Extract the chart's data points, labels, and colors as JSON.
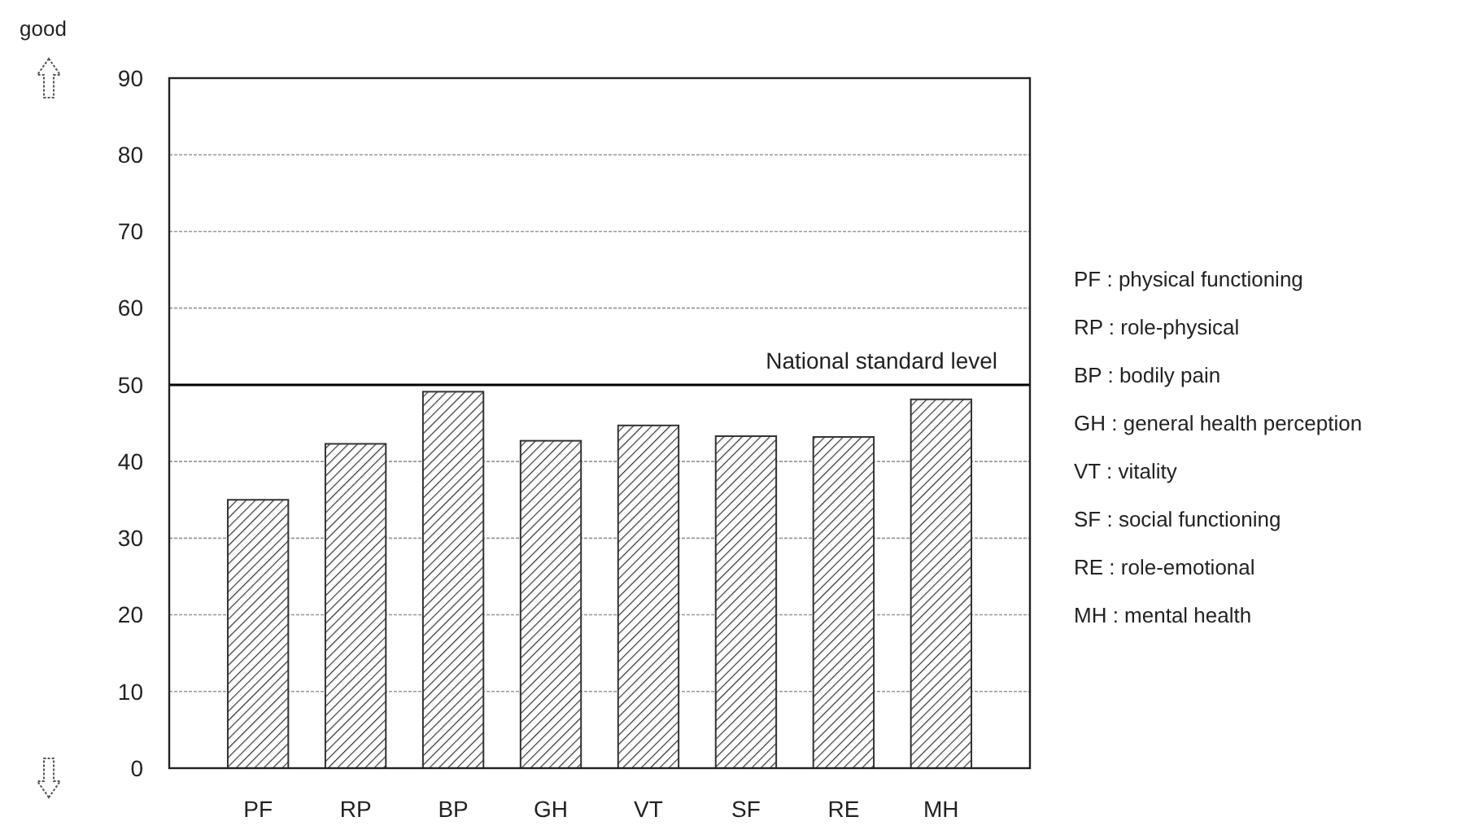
{
  "chart_data": {
    "type": "bar",
    "ylabel": "good",
    "categories": [
      "PF",
      "RP",
      "BP",
      "GH",
      "VT",
      "SF",
      "RE",
      "MH"
    ],
    "values": [
      35,
      42.3,
      49.1,
      42.7,
      44.7,
      43.3,
      43.2,
      48.1
    ],
    "color": "#333333",
    "ylim": [
      0,
      90
    ],
    "yticks": [
      0,
      10,
      20,
      30,
      40,
      50,
      60,
      70,
      80,
      90
    ],
    "grid": "y",
    "ref_lines": [
      {
        "axis": "y",
        "value": 50,
        "label": "National standard level",
        "color": "#000000",
        "line_style": "solid"
      }
    ],
    "annotations": [
      "PF : physical functioning",
      "RP : role-physical",
      "BP : bodily pain",
      "GH : general health perception",
      "VT : vitality",
      "SF : social functioning",
      "RE : role-emotional",
      "MH : mental health"
    ]
  }
}
